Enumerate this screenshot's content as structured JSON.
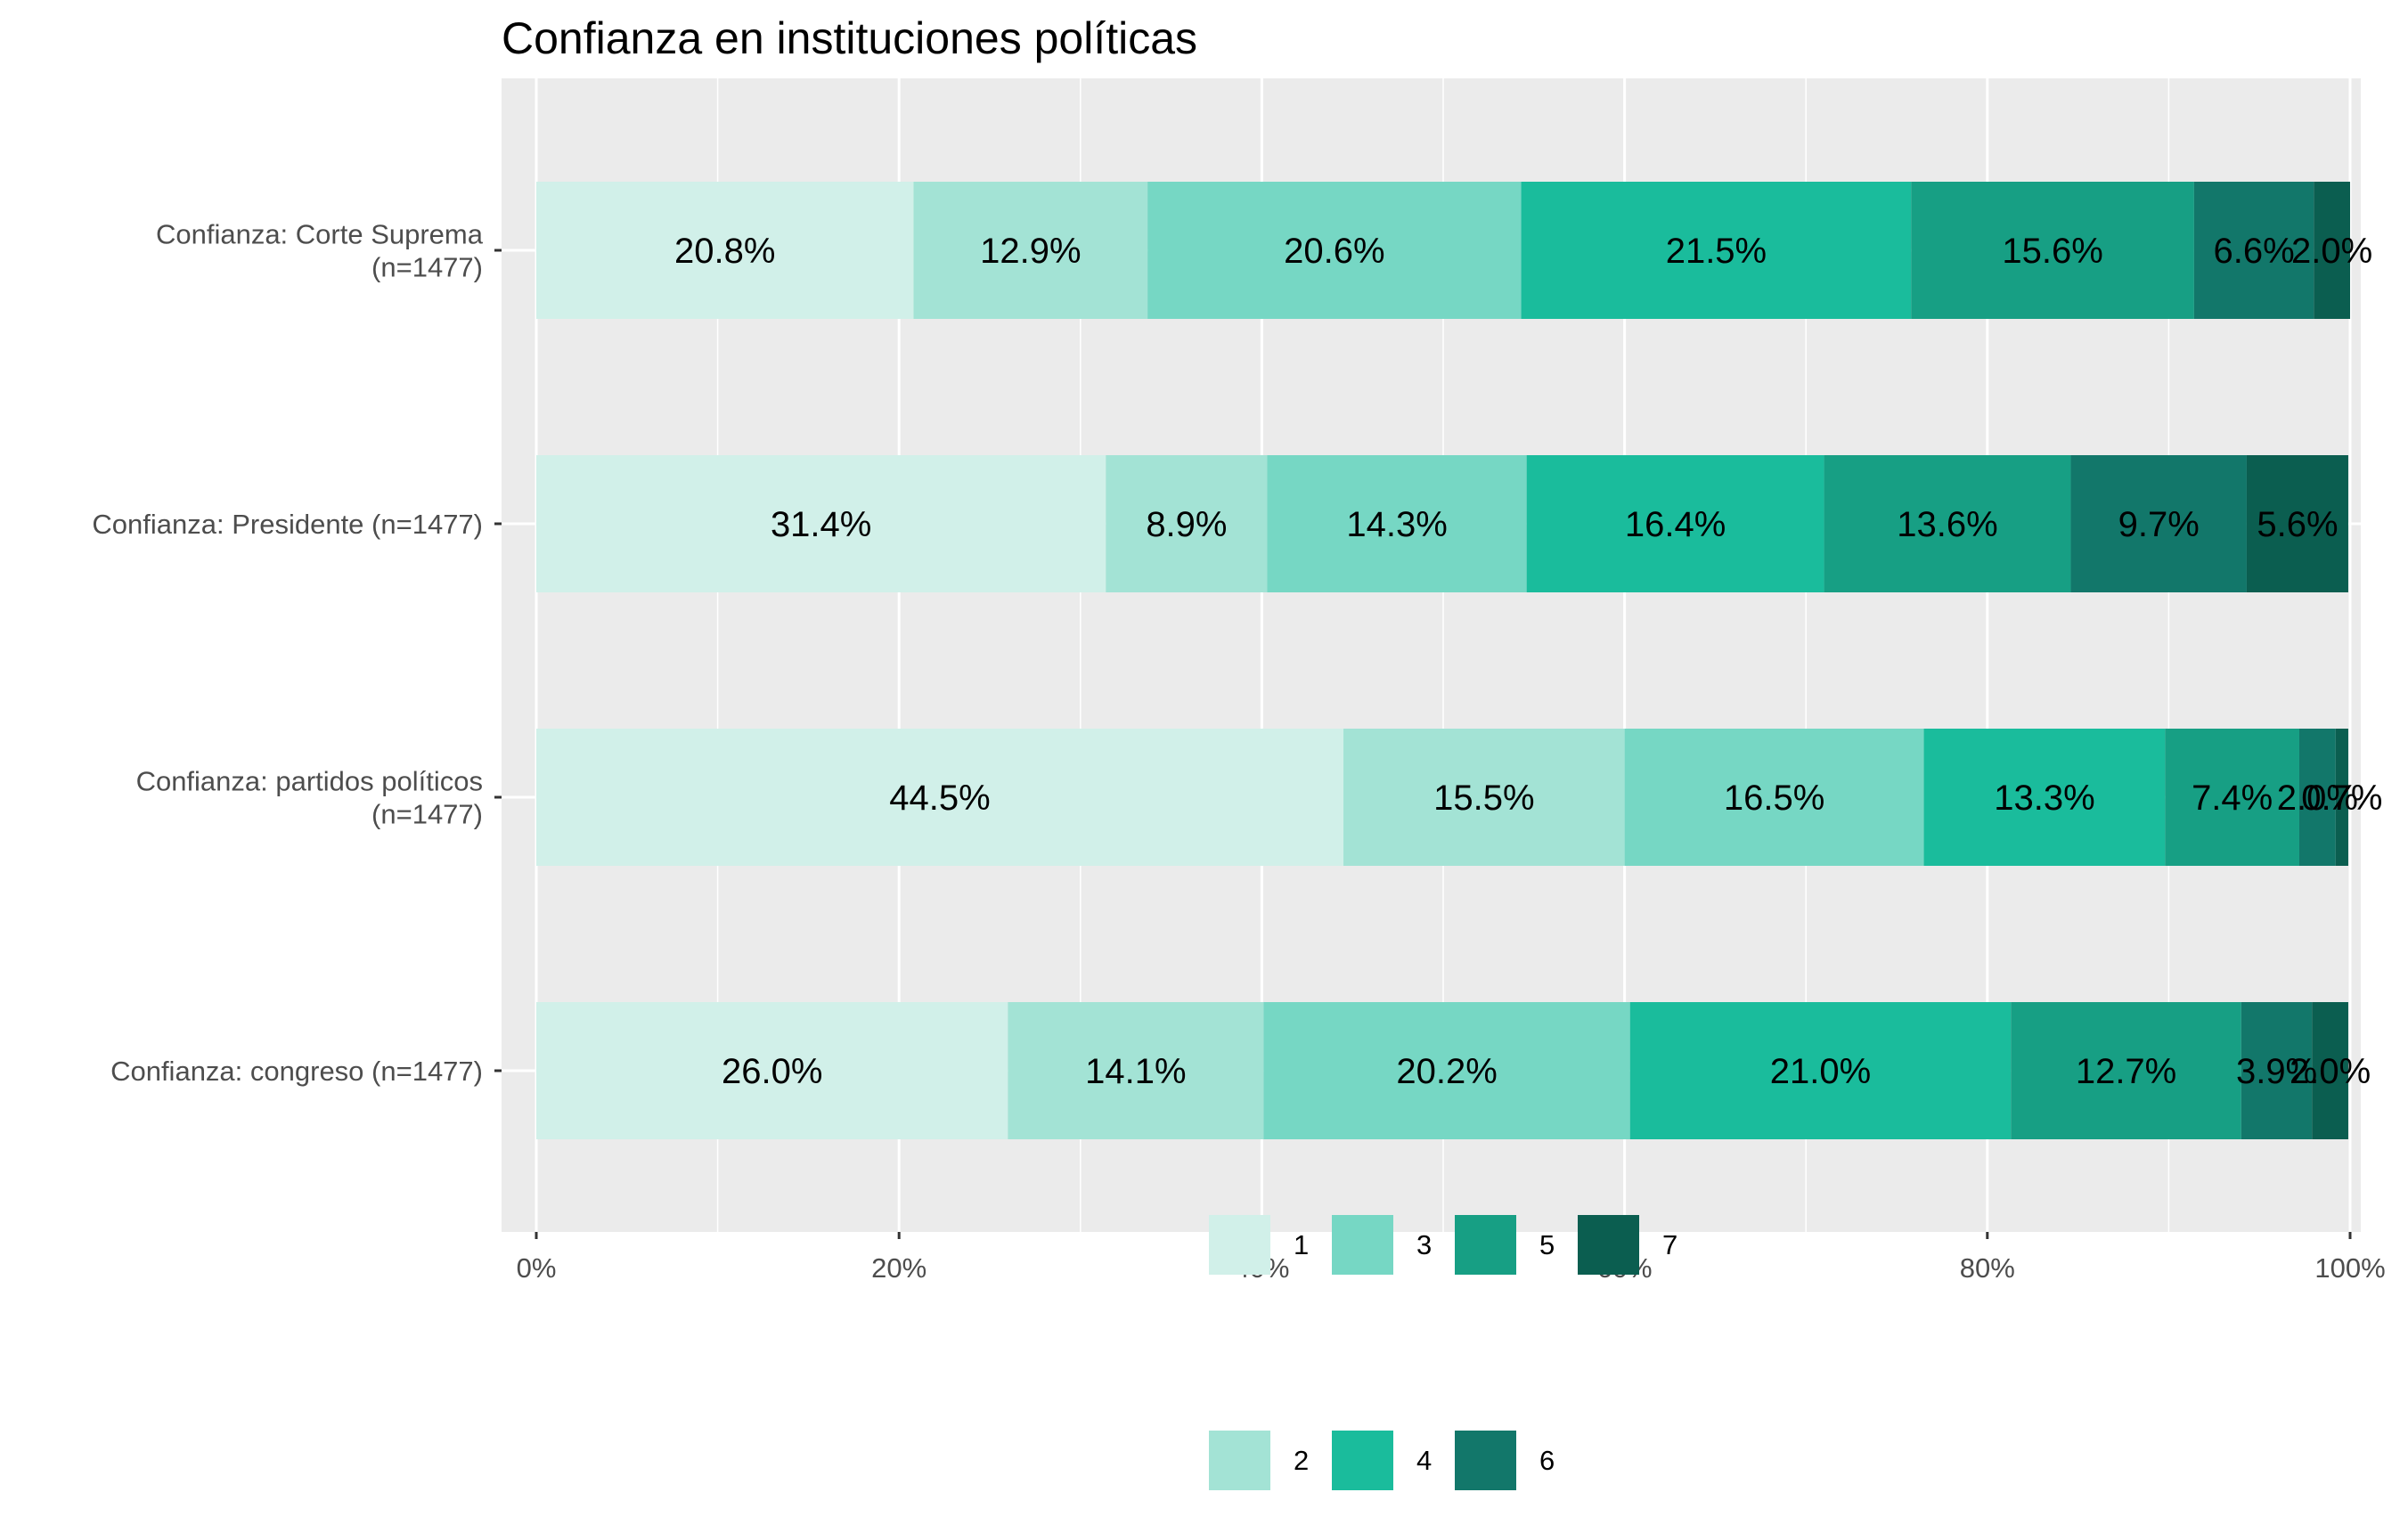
{
  "chart_data": {
    "type": "bar",
    "orientation": "horizontal",
    "stacked": true,
    "title": "Confianza en instituciones políticas",
    "categories": [
      [
        "Confianza: Corte Suprema",
        "(n=1477)"
      ],
      [
        "Confianza: Presidente (n=1477)"
      ],
      [
        "Confianza: partidos políticos",
        "(n=1477)"
      ],
      [
        "Confianza: congreso (n=1477)"
      ]
    ],
    "series": [
      {
        "name": "1",
        "color": "#d1f0e9",
        "values": [
          20.8,
          31.4,
          44.5,
          26.0
        ],
        "labels": [
          "20.8%",
          "31.4%",
          "44.5%",
          "26.0%"
        ]
      },
      {
        "name": "2",
        "color": "#a3e3d5",
        "values": [
          12.9,
          8.9,
          15.5,
          14.1
        ],
        "labels": [
          "12.9%",
          "8.9%",
          "15.5%",
          "14.1%"
        ]
      },
      {
        "name": "3",
        "color": "#76d7c4",
        "values": [
          20.6,
          14.3,
          16.5,
          20.2
        ],
        "labels": [
          "20.6%",
          "14.3%",
          "16.5%",
          "20.2%"
        ]
      },
      {
        "name": "4",
        "color": "#1abc9c",
        "values": [
          21.5,
          16.4,
          13.3,
          21.0
        ],
        "labels": [
          "21.5%",
          "16.4%",
          "13.3%",
          "21.0%"
        ]
      },
      {
        "name": "5",
        "color": "#179f84",
        "values": [
          15.6,
          13.6,
          7.4,
          12.7
        ],
        "labels": [
          "15.6%",
          "13.6%",
          "7.4%",
          "12.7%"
        ]
      },
      {
        "name": "6",
        "color": "#12776a",
        "values": [
          6.6,
          9.7,
          2.0,
          3.9
        ],
        "labels": [
          "6.6%",
          "9.7%",
          "2.0%",
          "3.9%"
        ]
      },
      {
        "name": "7",
        "color": "#0b5e50",
        "values": [
          2.0,
          5.6,
          0.7,
          2.0
        ],
        "labels": [
          "2.0%",
          "5.6%",
          "0.7%",
          "2.0%"
        ]
      }
    ],
    "xlim": [
      0,
      100
    ],
    "xticks": [
      0,
      20,
      40,
      60,
      80,
      100
    ],
    "xtick_labels": [
      "0%",
      "20%",
      "40%",
      "60%",
      "80%",
      "100%"
    ],
    "xlabel": "",
    "ylabel": "",
    "grid": true,
    "legend_position": "bottom"
  }
}
